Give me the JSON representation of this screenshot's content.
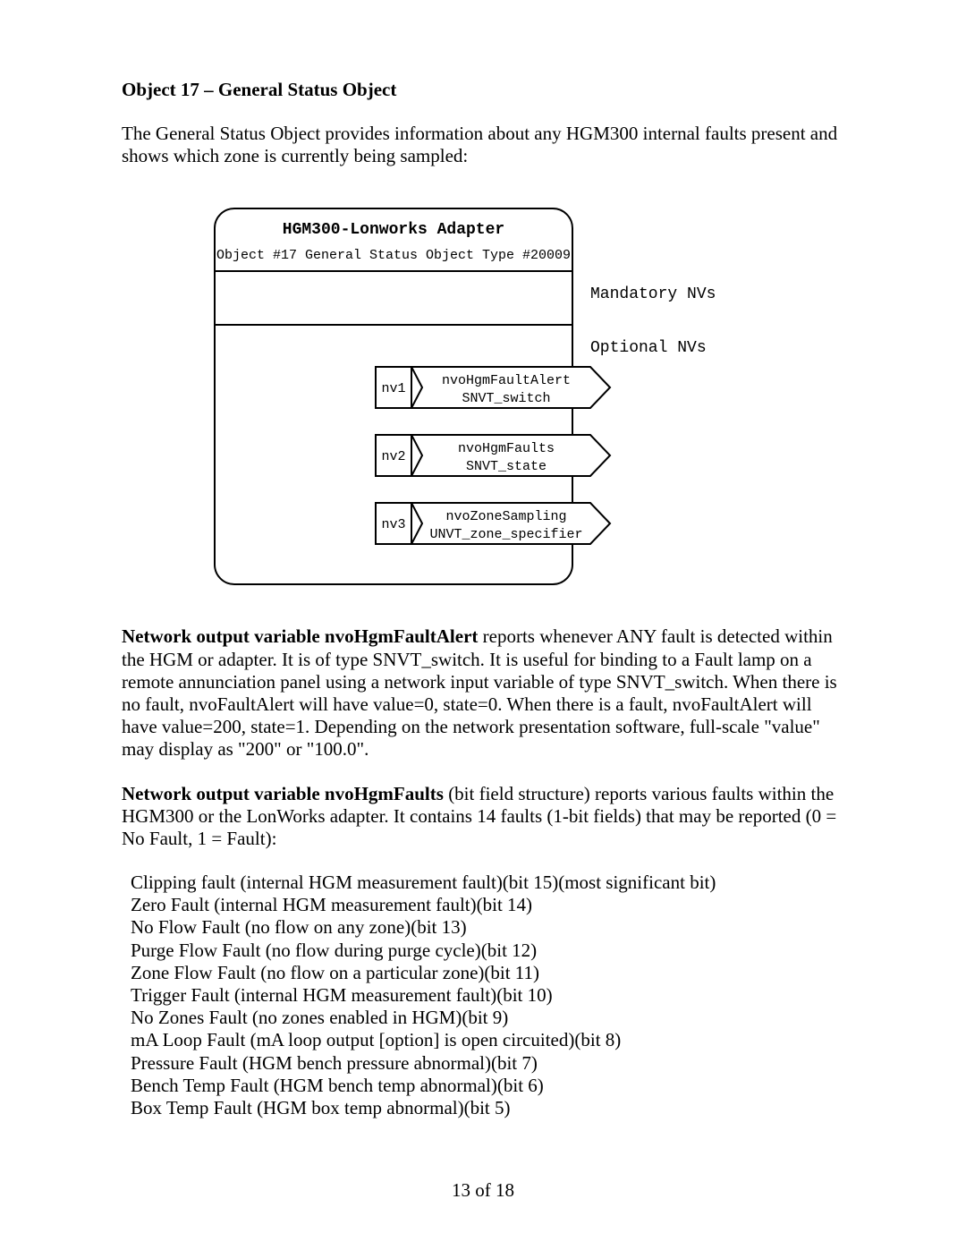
{
  "title": "Object 17 – General Status Object",
  "intro": "The General Status Object provides information about any HGM300 internal faults present and shows which zone is currently being sampled:",
  "diagram": {
    "header_line1": "HGM300-Lonworks Adapter",
    "header_line2": "Object #17  General Status Object   Type #20009",
    "mandatory_label": "Mandatory NVs",
    "optional_label": "Optional NVs",
    "nvs": [
      {
        "id": "nv1",
        "line1": "nvoHgmFaultAlert",
        "line2": "SNVT_switch"
      },
      {
        "id": "nv2",
        "line1": "nvoHgmFaults",
        "line2": "SNVT_state"
      },
      {
        "id": "nv3",
        "line1": "nvoZoneSampling",
        "line2": "UNVT_zone_specifier"
      }
    ],
    "stroke": "#000000",
    "bg": "#ffffff",
    "mono_font": "Courier",
    "header_fontsize": 18,
    "sub_fontsize": 15,
    "label_fontsize": 18,
    "nv_fontsize": 15
  },
  "para1_bold": "Network output variable nvoHgmFaultAlert",
  "para1_rest": " reports whenever ANY fault is detected within the HGM or adapter.  It is of type SNVT_switch.  It is useful for binding to a Fault lamp on a remote annunciation panel using a network input variable of type SNVT_switch.  When there is no fault, nvoFaultAlert will have value=0, state=0.  When there is a fault, nvoFaultAlert will have value=200, state=1.  Depending on the network presentation software, full-scale \"value\" may display as \"200\" or \"100.0\".",
  "para2_bold": "Network output variable nvoHgmFaults",
  "para2_rest": " (bit field structure) reports various faults within the HGM300 or the LonWorks adapter.  It contains 14 faults (1-bit fields) that may be reported (0 = No Fault, 1 = Fault):",
  "faults": [
    "Clipping fault (internal HGM measurement fault)(bit 15)(most significant bit)",
    "Zero Fault (internal HGM measurement fault)(bit 14)",
    "No Flow Fault (no flow on any zone)(bit 13)",
    "Purge Flow Fault (no flow during purge cycle)(bit 12)",
    "Zone Flow Fault (no flow on a particular zone)(bit 11)",
    "Trigger Fault (internal HGM measurement fault)(bit 10)",
    "No Zones Fault (no zones enabled in HGM)(bit 9)",
    "mA Loop Fault (mA loop output [option] is open circuited)(bit 8)",
    "Pressure Fault (HGM bench pressure abnormal)(bit 7)",
    "Bench Temp Fault (HGM bench temp abnormal)(bit 6)",
    "Box Temp Fault (HGM box temp abnormal)(bit 5)"
  ],
  "footer": "13 of 18"
}
